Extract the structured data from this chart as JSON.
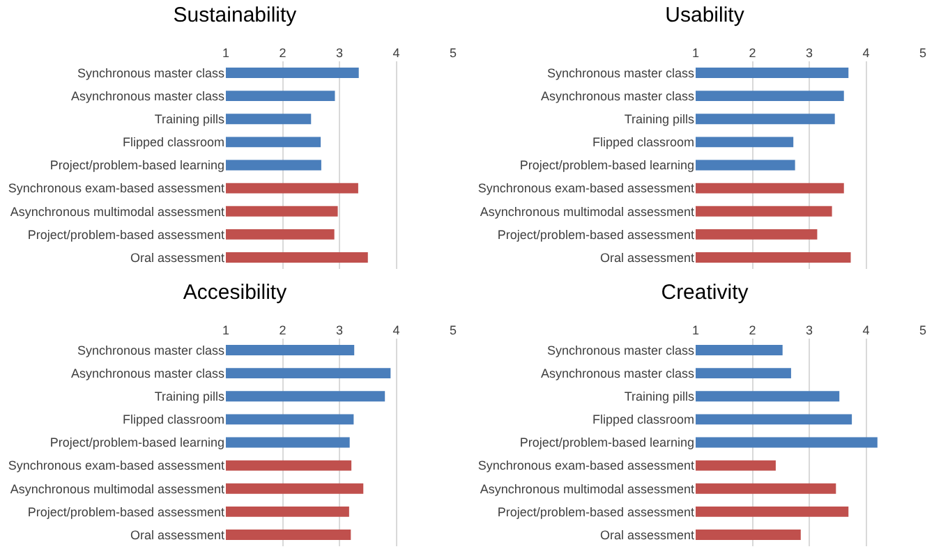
{
  "chart_data": [
    {
      "type": "bar",
      "orientation": "horizontal",
      "title": "Sustainability",
      "categories": [
        "Synchronous master class",
        "Asynchronous master class",
        "Training pills",
        "Flipped classroom",
        "Project/problem-based learning",
        "Synchronous exam-based assessment",
        "Asynchronous multimodal assessment",
        "Project/problem-based assessment",
        "Oral assessment"
      ],
      "values": [
        3.34,
        2.92,
        2.5,
        2.67,
        2.68,
        3.33,
        2.97,
        2.91,
        3.5
      ],
      "colors": [
        "#4a7ebb",
        "#4a7ebb",
        "#4a7ebb",
        "#4a7ebb",
        "#4a7ebb",
        "#c0504d",
        "#c0504d",
        "#c0504d",
        "#c0504d"
      ],
      "xlim": [
        1,
        5
      ],
      "xticks": [
        1,
        2,
        3,
        4,
        5
      ],
      "grid": "x"
    },
    {
      "type": "bar",
      "orientation": "horizontal",
      "title": "Usability",
      "categories": [
        "Synchronous master class",
        "Asynchronous master class",
        "Training pills",
        "Flipped classroom",
        "Project/problem-based learning",
        "Synchronous exam-based assessment",
        "Asynchronous multimodal assessment",
        "Project/problem-based assessment",
        "Oral assessment"
      ],
      "values": [
        3.69,
        3.61,
        3.45,
        2.72,
        2.75,
        3.61,
        3.4,
        3.14,
        3.73
      ],
      "colors": [
        "#4a7ebb",
        "#4a7ebb",
        "#4a7ebb",
        "#4a7ebb",
        "#4a7ebb",
        "#c0504d",
        "#c0504d",
        "#c0504d",
        "#c0504d"
      ],
      "xlim": [
        1,
        5
      ],
      "xticks": [
        1,
        2,
        3,
        4,
        5
      ],
      "grid": "x"
    },
    {
      "type": "bar",
      "orientation": "horizontal",
      "title": "Accesibility",
      "categories": [
        "Synchronous master class",
        "Asynchronous master class",
        "Training pills",
        "Flipped classroom",
        "Project/problem-based learning",
        "Synchronous exam-based assessment",
        "Asynchronous multimodal assessment",
        "Project/problem-based assessment",
        "Oral assessment"
      ],
      "values": [
        3.26,
        3.9,
        3.8,
        3.25,
        3.18,
        3.21,
        3.42,
        3.17,
        3.2
      ],
      "colors": [
        "#4a7ebb",
        "#4a7ebb",
        "#4a7ebb",
        "#4a7ebb",
        "#4a7ebb",
        "#c0504d",
        "#c0504d",
        "#c0504d",
        "#c0504d"
      ],
      "xlim": [
        1,
        5
      ],
      "xticks": [
        1,
        2,
        3,
        4,
        5
      ],
      "grid": "x"
    },
    {
      "type": "bar",
      "orientation": "horizontal",
      "title": "Creativity",
      "categories": [
        "Synchronous master class",
        "Asynchronous master class",
        "Training pills",
        "Flipped classroom",
        "Project/problem-based learning",
        "Synchronous exam-based assessment",
        "Asynchronous multimodal assessment",
        "Project/problem-based assessment",
        "Oral assessment"
      ],
      "values": [
        2.53,
        2.68,
        3.53,
        3.75,
        4.2,
        2.41,
        3.47,
        3.69,
        2.85
      ],
      "colors": [
        "#4a7ebb",
        "#4a7ebb",
        "#4a7ebb",
        "#4a7ebb",
        "#4a7ebb",
        "#c0504d",
        "#c0504d",
        "#c0504d",
        "#c0504d"
      ],
      "xlim": [
        1,
        5
      ],
      "xticks": [
        1,
        2,
        3,
        4,
        5
      ],
      "grid": "x"
    }
  ]
}
